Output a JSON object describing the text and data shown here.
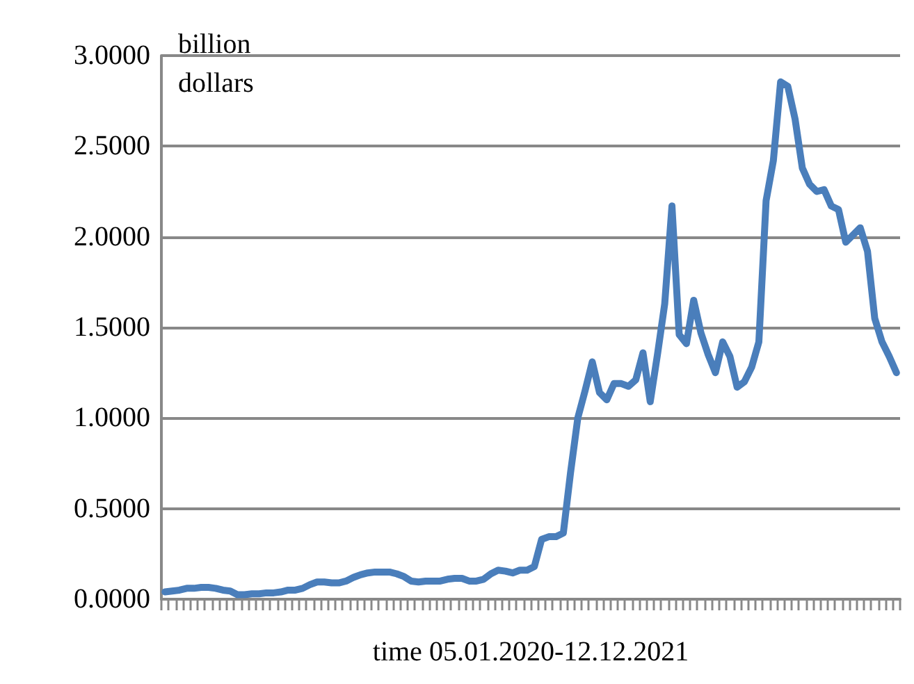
{
  "chart_data": {
    "type": "line",
    "xlabel": "time 05.01.2020-12.12.2021",
    "annotations": [
      "billion dollars"
    ],
    "categories": [
      null,
      null,
      null,
      null,
      null,
      null,
      null,
      null,
      null,
      null,
      null,
      null,
      null,
      null,
      null,
      null,
      null,
      null,
      null,
      null,
      null,
      null,
      null,
      null,
      null,
      null,
      null,
      null,
      null,
      null,
      null,
      null,
      null,
      null,
      null,
      null,
      null,
      null,
      null,
      null,
      null,
      null,
      null,
      null,
      null,
      null,
      null,
      null,
      null,
      null,
      null,
      null,
      null,
      null,
      null,
      null,
      null,
      null,
      null,
      null,
      null,
      null,
      null,
      null,
      null,
      null,
      null,
      null,
      null,
      null,
      null,
      null,
      null,
      null,
      null,
      null,
      null,
      null,
      null,
      null,
      null,
      null,
      null,
      null,
      null,
      null,
      null,
      null,
      null,
      null,
      null,
      null,
      null,
      null,
      null,
      null,
      null,
      null,
      null,
      null,
      null,
      null
    ],
    "series": [
      {
        "color": "#4a7ebb",
        "values": [
          0.04,
          0.045,
          0.05,
          0.06,
          0.06,
          0.065,
          0.065,
          0.06,
          0.05,
          0.045,
          0.025,
          0.025,
          0.03,
          0.03,
          0.035,
          0.035,
          0.04,
          0.05,
          0.05,
          0.06,
          0.08,
          0.095,
          0.095,
          0.09,
          0.09,
          0.1,
          0.12,
          0.135,
          0.145,
          0.15,
          0.15,
          0.15,
          0.14,
          0.125,
          0.1,
          0.095,
          0.1,
          0.1,
          0.1,
          0.11,
          0.115,
          0.115,
          0.1,
          0.1,
          0.11,
          0.14,
          0.16,
          0.155,
          0.145,
          0.16,
          0.16,
          0.18,
          0.33,
          0.345,
          0.345,
          0.365,
          0.7,
          1.0,
          1.15,
          1.31,
          1.14,
          1.1,
          1.19,
          1.19,
          1.175,
          1.21,
          1.36,
          1.09,
          1.35,
          1.63,
          2.17,
          1.46,
          1.41,
          1.65,
          1.47,
          1.35,
          1.25,
          1.42,
          1.34,
          1.17,
          1.2,
          1.28,
          1.42,
          2.2,
          2.42,
          2.855,
          2.83,
          2.65,
          2.38,
          2.29,
          2.25,
          2.26,
          2.17,
          2.15,
          1.97,
          2.01,
          2.05,
          1.92,
          1.55,
          1.42,
          1.34,
          1.25
        ]
      }
    ],
    "ylim": [
      0,
      3
    ],
    "yticks": [
      {
        "value": 0,
        "label": "0.0000"
      },
      {
        "value": 0.5,
        "label": "0.5000"
      },
      {
        "value": 1,
        "label": "1.0000"
      },
      {
        "value": 1.5,
        "label": "1.5000"
      },
      {
        "value": 2,
        "label": "2.0000"
      },
      {
        "value": 2.5,
        "label": "2.5000"
      },
      {
        "value": 3,
        "label": "3.0000"
      }
    ],
    "grid": "y",
    "marker": "none",
    "line_style": "solid"
  }
}
